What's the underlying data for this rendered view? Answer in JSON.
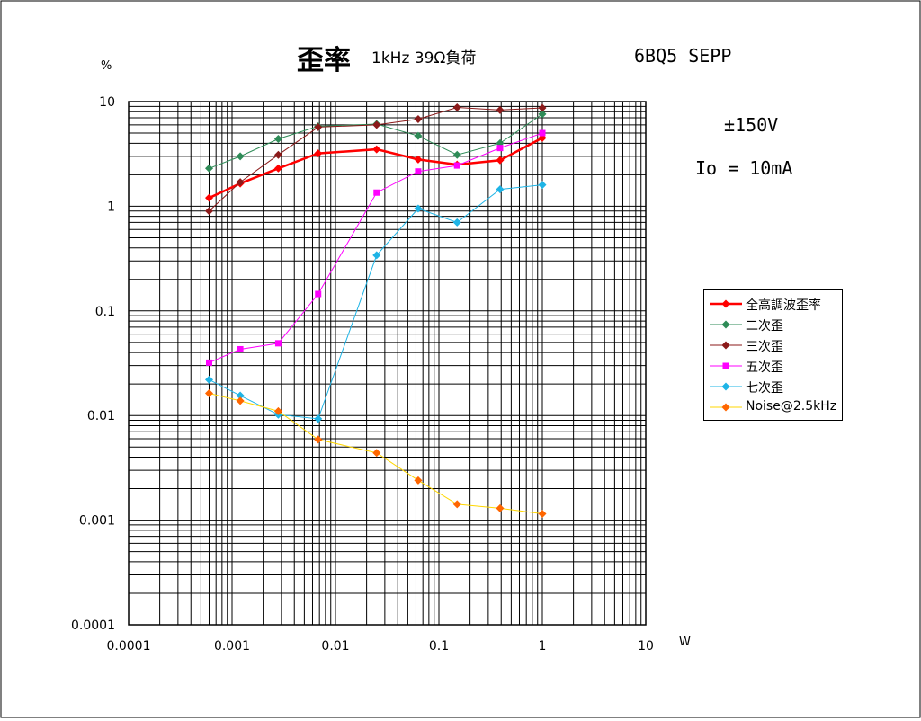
{
  "title": "歪率",
  "subtitle": "1kHz 39Ω負荷",
  "tube": "6BQ5 SEPP",
  "annotation_voltage": "±150V",
  "annotation_current": "Io = 10mA",
  "y_unit": "%",
  "x_unit": "W",
  "chart_data": {
    "type": "line",
    "x_scale": "log",
    "y_scale": "log",
    "xlim": [
      0.0001,
      10
    ],
    "ylim": [
      0.0001,
      10
    ],
    "x_ticks": [
      "0.0001",
      "0.001",
      "0.01",
      "0.1",
      "1",
      "10"
    ],
    "y_ticks": [
      "10",
      "1",
      "0.1",
      "0.01",
      "0.001",
      "0.0001"
    ],
    "grid": true,
    "legend_position": "right",
    "series": [
      {
        "name": "全高調波歪率",
        "color": "#ff0000",
        "marker": "diamond",
        "line_width": 2.5,
        "points": [
          [
            0.0006,
            1.2
          ],
          [
            0.0012,
            1.65
          ],
          [
            0.0028,
            2.3
          ],
          [
            0.0068,
            3.2
          ],
          [
            0.025,
            3.5
          ],
          [
            0.063,
            2.8
          ],
          [
            0.15,
            2.5
          ],
          [
            0.39,
            2.75
          ],
          [
            1.0,
            4.5
          ]
        ]
      },
      {
        "name": "二次歪",
        "color": "#2e8b57",
        "marker": "diamond",
        "line_width": 1,
        "points": [
          [
            0.0006,
            2.3
          ],
          [
            0.0012,
            3.0
          ],
          [
            0.0028,
            4.4
          ],
          [
            0.0068,
            5.8
          ],
          [
            0.025,
            6.1
          ],
          [
            0.063,
            4.7
          ],
          [
            0.15,
            3.1
          ],
          [
            0.39,
            4.0
          ],
          [
            1.0,
            7.6
          ]
        ]
      },
      {
        "name": "三次歪",
        "color": "#8b1a1a",
        "marker": "diamond",
        "line_width": 1,
        "points": [
          [
            0.0006,
            0.9
          ],
          [
            0.0012,
            1.7
          ],
          [
            0.0028,
            3.1
          ],
          [
            0.0068,
            5.7
          ],
          [
            0.025,
            6.0
          ],
          [
            0.063,
            6.8
          ],
          [
            0.15,
            8.8
          ],
          [
            0.39,
            8.3
          ],
          [
            1.0,
            8.7
          ]
        ]
      },
      {
        "name": "五次歪",
        "color": "#ff00ff",
        "marker": "square",
        "line_width": 1,
        "points": [
          [
            0.0006,
            0.032
          ],
          [
            0.0012,
            0.043
          ],
          [
            0.0028,
            0.049
          ],
          [
            0.0068,
            0.145
          ],
          [
            0.025,
            1.35
          ],
          [
            0.063,
            2.15
          ],
          [
            0.15,
            2.45
          ],
          [
            0.39,
            3.6
          ],
          [
            1.0,
            5.0
          ]
        ]
      },
      {
        "name": "七次歪",
        "color": "#1eb4e6",
        "marker": "diamond",
        "line_width": 1,
        "points": [
          [
            0.0006,
            0.022
          ],
          [
            0.0012,
            0.0155
          ],
          [
            0.0028,
            0.0102
          ],
          [
            0.0068,
            0.0093
          ],
          [
            0.025,
            0.34
          ],
          [
            0.063,
            0.95
          ],
          [
            0.15,
            0.7
          ],
          [
            0.39,
            1.45
          ],
          [
            1.0,
            1.6
          ]
        ]
      },
      {
        "name": "Noise@2.5kHz",
        "color": "#ff6600",
        "line_color": "#ffd700",
        "marker": "diamond",
        "line_width": 1,
        "points": [
          [
            0.0006,
            0.0163
          ],
          [
            0.0012,
            0.0138
          ],
          [
            0.0028,
            0.011
          ],
          [
            0.0068,
            0.0059
          ],
          [
            0.025,
            0.0044
          ],
          [
            0.063,
            0.0024
          ],
          [
            0.15,
            0.00142
          ],
          [
            0.39,
            0.0013
          ],
          [
            1.0,
            0.00115
          ]
        ]
      }
    ]
  }
}
